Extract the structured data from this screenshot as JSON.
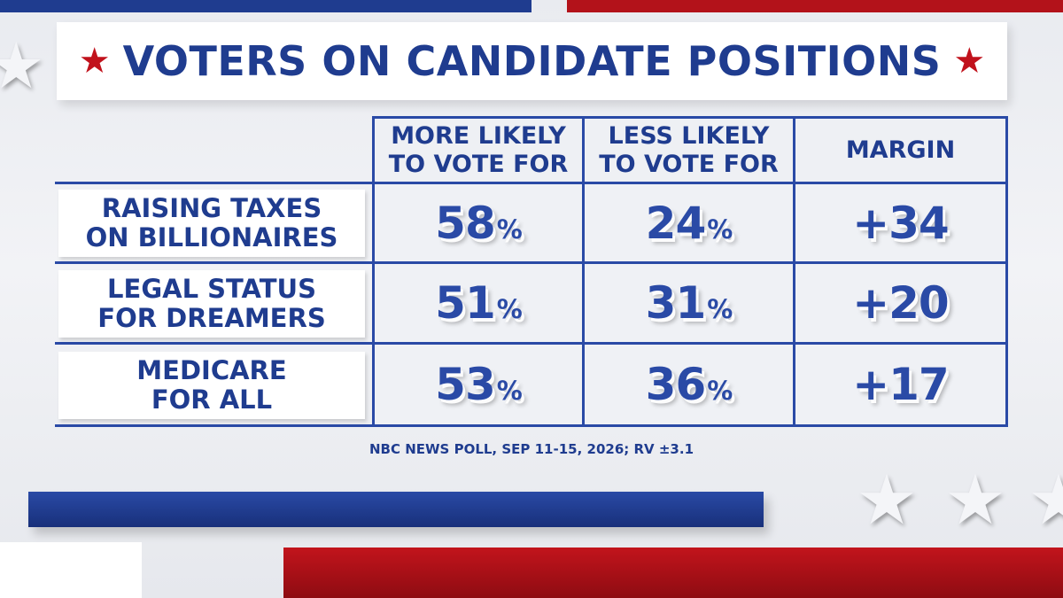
{
  "title": "VOTERS ON CANDIDATE POSITIONS",
  "source": "NBC NEWS POLL, SEP 11-15, 2026; RV ±3.1",
  "chart_data": {
    "type": "table",
    "columns": [
      "MORE LIKELY\nTO VOTE FOR",
      "LESS LIKELY\nTO VOTE FOR",
      "MARGIN"
    ],
    "rows": [
      {
        "label": "RAISING TAXES\nON BILLIONAIRES",
        "more": "58",
        "less": "24",
        "margin": "+34"
      },
      {
        "label": "LEGAL STATUS\nFOR DREAMERS",
        "more": "51",
        "less": "31",
        "margin": "+20"
      },
      {
        "label": "MEDICARE\nFOR ALL",
        "more": "53",
        "less": "36",
        "margin": "+17"
      }
    ],
    "unit": "%"
  },
  "colors": {
    "blue": "#1f3c8f",
    "red": "#c1121c"
  }
}
